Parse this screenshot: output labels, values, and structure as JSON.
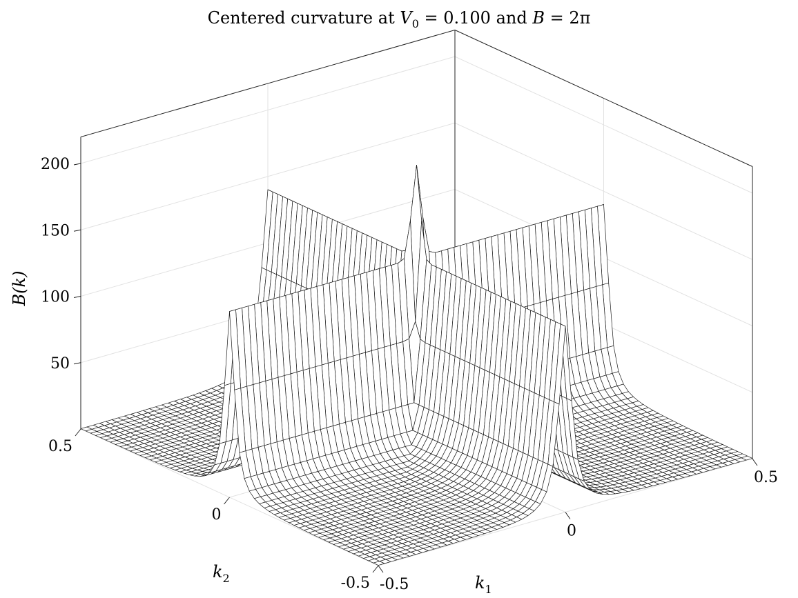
{
  "chart_data": {
    "type": "surface3d",
    "title": "Centered curvature at V₀ = 0.100 and B = 2π",
    "title_parts": {
      "prefix": "Centered curvature at ",
      "v_symbol": "V",
      "v_subscript": "0",
      "v_value": " = 0.100 and ",
      "b_symbol": "B",
      "b_value": " = 2π"
    },
    "xlabel": "k₁",
    "xlabel_parts": {
      "symbol": "k",
      "subscript": "1"
    },
    "ylabel": "k₂",
    "ylabel_parts": {
      "symbol": "k",
      "subscript": "2"
    },
    "zlabel": "B(k)",
    "x_range": [
      -0.5,
      0.5
    ],
    "y_range": [
      -0.5,
      0.5
    ],
    "z_range": [
      0,
      220
    ],
    "x_ticks": [
      "-0.5",
      "0",
      "0.5"
    ],
    "x_tick_values": [
      -0.5,
      0,
      0.5
    ],
    "y_ticks": [
      "-0.5",
      "0",
      "0.5"
    ],
    "y_tick_values": [
      -0.5,
      0,
      0.5
    ],
    "z_ticks": [
      "50",
      "100",
      "150",
      "200"
    ],
    "z_tick_values": [
      50,
      100,
      150,
      200
    ],
    "grid": true,
    "colormap": "white faces, black mesh edges",
    "surface": {
      "ridge_height": 140,
      "peak_height": 210,
      "ridge_width": 0.02,
      "grid_points": 61,
      "ridges_along": [
        "k1 = 0",
        "k2 = 0"
      ],
      "peak_at": [
        0,
        0
      ]
    }
  }
}
